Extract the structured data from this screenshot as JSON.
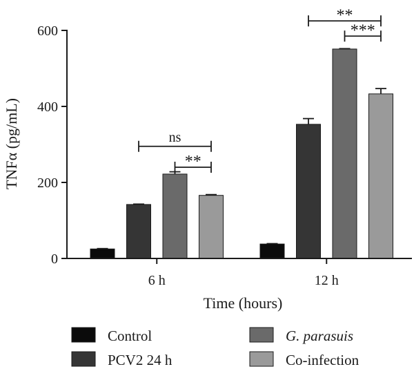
{
  "chart_data": {
    "type": "bar",
    "xlabel": "Time (hours)",
    "ylabel": "TNFα (pg/mL)",
    "ylim": [
      0,
      600
    ],
    "yticks": [
      0,
      200,
      400,
      600
    ],
    "grid": false,
    "legend_position": "bottom",
    "categories": [
      "6 h",
      "12 h"
    ],
    "series": [
      {
        "name": "Control",
        "name_italic": "",
        "name_rest": "Control",
        "color": "#0b0b0b",
        "values": [
          25,
          38
        ],
        "errors": [
          1,
          1
        ]
      },
      {
        "name": "PCV2 24 h",
        "name_italic": "",
        "name_rest": "PCV2 24 h",
        "color": "#353535",
        "values": [
          142,
          353
        ],
        "errors": [
          1,
          15
        ]
      },
      {
        "name": "G. parasuis",
        "name_italic": "G. parasuis",
        "name_rest": "",
        "color": "#6a6a6a",
        "values": [
          222,
          551
        ],
        "errors": [
          6,
          1
        ]
      },
      {
        "name": "Co-infection",
        "name_italic": "",
        "name_rest": "Co-infection",
        "color": "#9a9a9a",
        "values": [
          166,
          433
        ],
        "errors": [
          2,
          14
        ]
      }
    ],
    "annotations": [
      {
        "group": 0,
        "from": 1,
        "to": 3,
        "level": 295,
        "label": "ns"
      },
      {
        "group": 0,
        "from": 2,
        "to": 3,
        "level": 240,
        "label": "**"
      },
      {
        "group": 1,
        "from": 1,
        "to": 3,
        "level": 625,
        "label": "**"
      },
      {
        "group": 1,
        "from": 2,
        "to": 3,
        "level": 585,
        "label": "***"
      }
    ]
  }
}
